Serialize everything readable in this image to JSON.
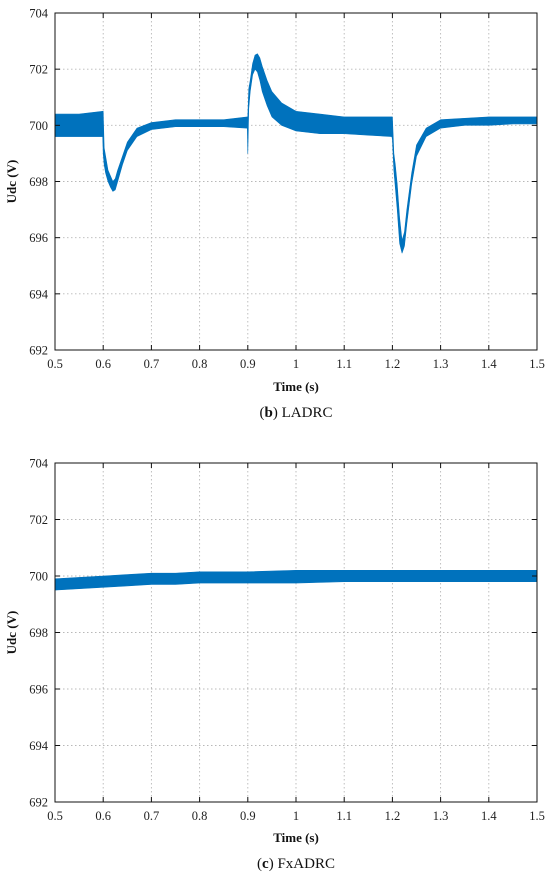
{
  "chart_data": [
    {
      "type": "line",
      "caption_label": "b",
      "caption_text": "LADRC",
      "xlabel": "Time (s)",
      "ylabel": "Udc (V)",
      "xlim": [
        0.5,
        1.5
      ],
      "ylim": [
        692,
        704
      ],
      "xticks": [
        "0.5",
        "0.6",
        "0.7",
        "0.8",
        "0.9",
        "1",
        "1.1",
        "1.2",
        "1.3",
        "1.4",
        "1.5"
      ],
      "yticks": [
        "692",
        "694",
        "696",
        "698",
        "700",
        "702",
        "704"
      ],
      "grid": true,
      "color": "#0072BD",
      "series": [
        {
          "x": [
            0.5,
            0.55,
            0.599,
            0.6,
            0.602,
            0.605,
            0.61,
            0.615,
            0.62,
            0.625,
            0.63,
            0.64,
            0.65,
            0.67,
            0.7,
            0.75,
            0.8,
            0.85,
            0.899,
            0.9,
            0.902,
            0.905,
            0.91,
            0.915,
            0.92,
            0.925,
            0.93,
            0.94,
            0.95,
            0.97,
            1.0,
            1.05,
            1.1,
            1.15,
            1.199,
            1.2,
            1.203,
            1.206,
            1.21,
            1.215,
            1.22,
            1.225,
            1.23,
            1.24,
            1.25,
            1.27,
            1.3,
            1.35,
            1.4,
            1.45,
            1.5
          ],
          "upper": [
            700.4,
            700.4,
            700.5,
            700.5,
            699.2,
            698.9,
            698.4,
            698.2,
            698.0,
            698.1,
            698.4,
            698.9,
            699.4,
            699.9,
            700.1,
            700.2,
            700.2,
            700.2,
            700.3,
            700.3,
            701.3,
            701.6,
            702.2,
            702.5,
            702.55,
            702.4,
            702.1,
            701.6,
            701.2,
            700.8,
            700.5,
            700.4,
            700.3,
            700.3,
            700.3,
            700.3,
            699.0,
            698.6,
            697.9,
            696.7,
            695.9,
            696.2,
            697.0,
            698.3,
            699.3,
            699.9,
            700.2,
            700.25,
            700.3,
            700.3,
            700.3
          ],
          "lower": [
            699.6,
            699.6,
            699.6,
            699.0,
            698.6,
            698.3,
            698.0,
            697.8,
            697.65,
            697.7,
            698.0,
            698.6,
            699.1,
            699.6,
            699.85,
            699.95,
            699.95,
            699.95,
            699.9,
            699.0,
            700.6,
            701.2,
            701.8,
            702.0,
            701.9,
            701.6,
            701.2,
            700.7,
            700.3,
            700.0,
            699.8,
            699.7,
            699.7,
            699.65,
            699.6,
            699.5,
            698.4,
            697.8,
            697.0,
            695.8,
            695.45,
            695.7,
            696.5,
            697.9,
            698.9,
            699.6,
            699.9,
            700.0,
            700.0,
            700.05,
            700.05
          ]
        }
      ]
    },
    {
      "type": "line",
      "caption_label": "c",
      "caption_text": "FxADRC",
      "xlabel": "Time (s)",
      "ylabel": "Udc (V)",
      "xlim": [
        0.5,
        1.5
      ],
      "ylim": [
        692,
        704
      ],
      "xticks": [
        "0.5",
        "0.6",
        "0.7",
        "0.8",
        "0.9",
        "1",
        "1.1",
        "1.2",
        "1.3",
        "1.4",
        "1.5"
      ],
      "yticks": [
        "692",
        "694",
        "696",
        "698",
        "700",
        "702",
        "704"
      ],
      "grid": true,
      "color": "#0072BD",
      "series": [
        {
          "x": [
            0.5,
            0.55,
            0.6,
            0.65,
            0.7,
            0.75,
            0.8,
            0.9,
            1.0,
            1.1,
            1.2,
            1.3,
            1.4,
            1.5
          ],
          "upper": [
            699.9,
            699.95,
            700.0,
            700.05,
            700.1,
            700.1,
            700.15,
            700.15,
            700.2,
            700.2,
            700.2,
            700.2,
            700.2,
            700.2
          ],
          "lower": [
            699.5,
            699.55,
            699.6,
            699.65,
            699.7,
            699.7,
            699.75,
            699.75,
            699.75,
            699.8,
            699.8,
            699.8,
            699.8,
            699.8
          ]
        }
      ]
    }
  ]
}
